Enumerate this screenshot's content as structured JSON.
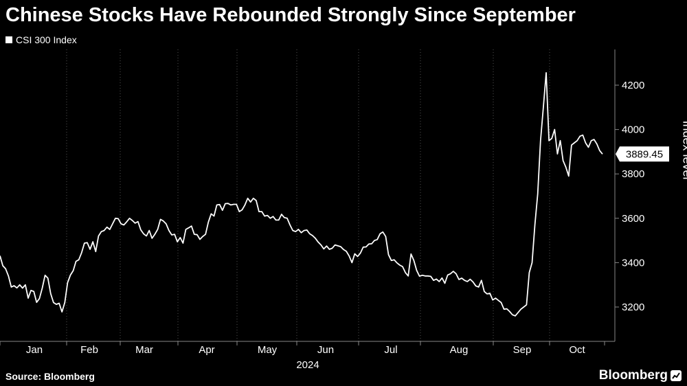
{
  "title": "Chinese Stocks Have Rebounded Strongly Since September",
  "legend_label": "CSI 300 Index",
  "source": "Source: Bloomberg",
  "brand": "Bloomberg",
  "chart_data": {
    "type": "line",
    "title": "Chinese Stocks Have Rebounded Strongly Since September",
    "ylabel": "Index level",
    "xlabel": "2024",
    "ylim": [
      3080,
      4330
    ],
    "y_ticks": [
      3200,
      3400,
      3600,
      3800,
      4000,
      4200
    ],
    "x_tick_labels": [
      "Jan",
      "Feb",
      "Mar",
      "Apr",
      "May",
      "Jun",
      "Jul",
      "Aug",
      "Sep",
      "Oct"
    ],
    "x_year_label": "2024",
    "last_value_label": "3889.45",
    "grid": "vertical dotted",
    "series": [
      {
        "name": "CSI 300 Index",
        "values": [
          3431,
          3386,
          3372,
          3340,
          3290,
          3296,
          3286,
          3300,
          3285,
          3300,
          3240,
          3275,
          3270,
          3221,
          3238,
          3285,
          3343,
          3330,
          3260,
          3220,
          3212,
          3217,
          3178,
          3220,
          3310,
          3344,
          3364,
          3406,
          3413,
          3445,
          3488,
          3490,
          3460,
          3494,
          3450,
          3520,
          3540,
          3545,
          3560,
          3550,
          3575,
          3600,
          3598,
          3575,
          3570,
          3584,
          3600,
          3590,
          3578,
          3585,
          3548,
          3530,
          3520,
          3545,
          3510,
          3528,
          3550,
          3595,
          3588,
          3575,
          3545,
          3525,
          3528,
          3494,
          3513,
          3488,
          3550,
          3557,
          3565,
          3528,
          3526,
          3505,
          3518,
          3528,
          3583,
          3620,
          3610,
          3660,
          3662,
          3636,
          3666,
          3667,
          3660,
          3663,
          3663,
          3630,
          3638,
          3660,
          3690,
          3673,
          3690,
          3680,
          3630,
          3630,
          3610,
          3613,
          3600,
          3608,
          3592,
          3592,
          3618,
          3603,
          3600,
          3570,
          3545,
          3540,
          3550,
          3535,
          3545,
          3547,
          3530,
          3522,
          3510,
          3493,
          3480,
          3462,
          3475,
          3460,
          3465,
          3480,
          3476,
          3472,
          3459,
          3451,
          3430,
          3400,
          3440,
          3428,
          3443,
          3470,
          3471,
          3484,
          3485,
          3500,
          3504,
          3530,
          3538,
          3518,
          3436,
          3410,
          3413,
          3399,
          3389,
          3382,
          3355,
          3340,
          3439,
          3410,
          3365,
          3339,
          3343,
          3340,
          3340,
          3338,
          3320,
          3326,
          3315,
          3331,
          3307,
          3344,
          3350,
          3361,
          3350,
          3324,
          3330,
          3320,
          3315,
          3325,
          3313,
          3295,
          3290,
          3320,
          3270,
          3259,
          3262,
          3232,
          3240,
          3230,
          3220,
          3190,
          3192,
          3180,
          3165,
          3160,
          3175,
          3190,
          3200,
          3210,
          3355,
          3400,
          3571,
          3710,
          3950,
          4100,
          4256,
          3950,
          3960,
          4000,
          3890,
          3950,
          3860,
          3830,
          3790,
          3930,
          3940,
          3950,
          3970,
          3975,
          3940,
          3920,
          3950,
          3955,
          3935,
          3905,
          3889.45
        ]
      }
    ]
  }
}
